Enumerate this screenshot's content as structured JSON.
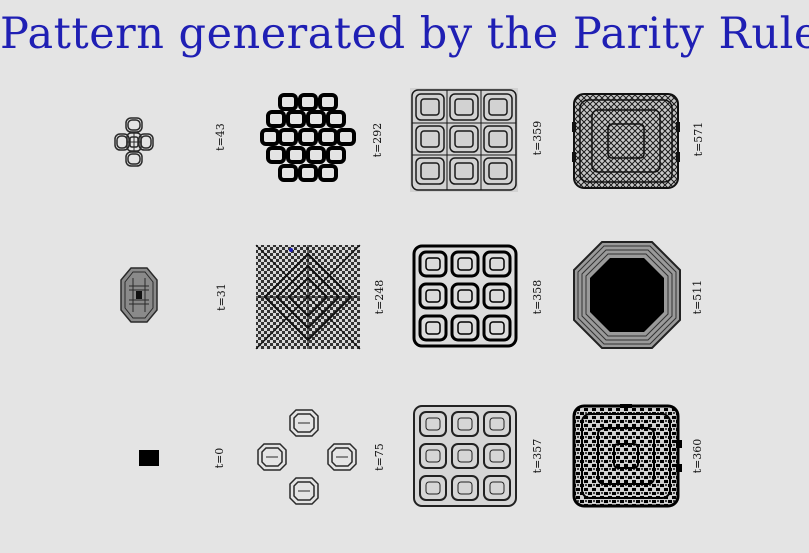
{
  "slide": {
    "title": "Pattern generated by the Parity Rule",
    "title_color": "#1f1fb4",
    "background": "#e4e4e4"
  },
  "patterns": [
    {
      "label": "t=43",
      "shape": "cross-rings",
      "row": 1,
      "col": 1
    },
    {
      "label": "t=292",
      "shape": "circle-grid-bold",
      "row": 1,
      "col": 2
    },
    {
      "label": "t=359",
      "shape": "square-grid-rings",
      "row": 1,
      "col": 3
    },
    {
      "label": "t=571",
      "shape": "dense-square",
      "row": 1,
      "col": 4
    },
    {
      "label": "t=31",
      "shape": "octagon-small",
      "row": 2,
      "col": 1
    },
    {
      "label": "t=248",
      "shape": "diamond-checker",
      "row": 2,
      "col": 2
    },
    {
      "label": "t=358",
      "shape": "rounded-square-rings",
      "row": 2,
      "col": 3
    },
    {
      "label": "t=511",
      "shape": "octagon-solid",
      "row": 2,
      "col": 4
    },
    {
      "label": "t=0",
      "shape": "single-block",
      "row": 3,
      "col": 1
    },
    {
      "label": "t=75",
      "shape": "four-octagons",
      "row": 3,
      "col": 2
    },
    {
      "label": "t=357",
      "shape": "rounded-square-rings",
      "row": 3,
      "col": 3
    },
    {
      "label": "t=360",
      "shape": "dense-square",
      "row": 3,
      "col": 4
    }
  ]
}
